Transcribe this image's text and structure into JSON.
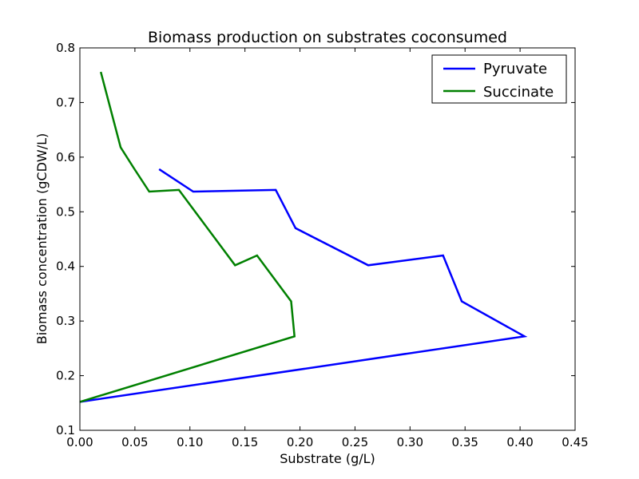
{
  "chart_data": {
    "type": "line",
    "title": "Biomass production on substrates coconsumed",
    "xlabel": "Substrate (g/L)",
    "ylabel": "Biomass concentration (gCDW/L)",
    "xlim": [
      0.0,
      0.45
    ],
    "ylim": [
      0.1,
      0.8
    ],
    "xticks": [
      "0.00",
      "0.05",
      "0.10",
      "0.15",
      "0.20",
      "0.25",
      "0.30",
      "0.35",
      "0.40",
      "0.45"
    ],
    "yticks": [
      "0.1",
      "0.2",
      "0.3",
      "0.4",
      "0.5",
      "0.6",
      "0.7",
      "0.8"
    ],
    "grid": false,
    "legend_position": "top-right",
    "series": [
      {
        "name": "Pyruvate",
        "color": "#0000ff",
        "x": [
          0.072,
          0.103,
          0.178,
          0.196,
          0.262,
          0.33,
          0.347,
          0.404,
          0.0
        ],
        "y": [
          0.578,
          0.537,
          0.54,
          0.47,
          0.402,
          0.42,
          0.336,
          0.272,
          0.152
        ]
      },
      {
        "name": "Succinate",
        "color": "#008000",
        "x": [
          0.019,
          0.037,
          0.049,
          0.063,
          0.09,
          0.141,
          0.161,
          0.192,
          0.195,
          0.0
        ],
        "y": [
          0.756,
          0.618,
          0.58,
          0.537,
          0.54,
          0.402,
          0.42,
          0.336,
          0.272,
          0.152
        ]
      }
    ]
  }
}
